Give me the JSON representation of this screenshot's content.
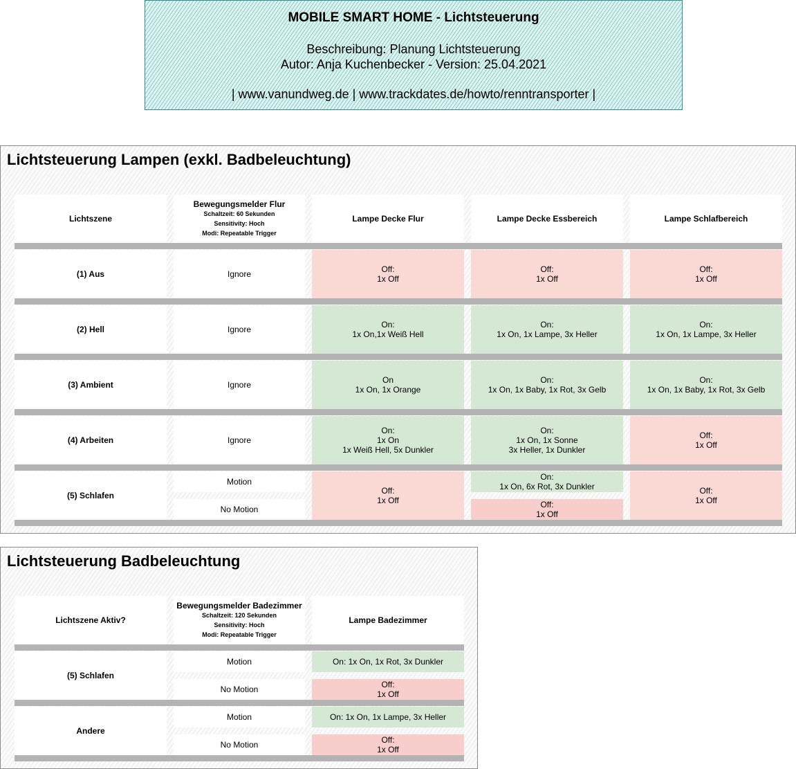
{
  "header": {
    "title": "MOBILE SMART HOME - Lichtsteuerung",
    "description": "Beschreibung: Planung Lichtsteuerung",
    "author": "Autor: Anja Kuchenbecker - Version: 25.04.2021",
    "links": "| www.vanundweg.de | www.trackdates.de/howto/renntransporter |"
  },
  "panel1": {
    "title": "Lichtsteuerung Lampen (exkl. Badbeleuchtung)",
    "col_scene": "Lichtszene",
    "col_motion": {
      "title": "Bewegungsmelder Flur",
      "switch_time": "Schaltzeit: 60 Sekunden",
      "sensitivity": "Sensitivity: Hoch",
      "mode": "Modi: Repeatable Trigger"
    },
    "col_lamp1": "Lampe Decke Flur",
    "col_lamp2": "Lampe Decke Essbereich",
    "col_lamp3": "Lampe Schlafbereich",
    "rows": {
      "aus": {
        "scene": "(1) Aus",
        "motion": "Ignore",
        "lamp1": [
          "Off:",
          "1x Off"
        ],
        "lamp2": [
          "Off:",
          "1x Off"
        ],
        "lamp3": [
          "Off:",
          "1x Off"
        ]
      },
      "hell": {
        "scene": "(2) Hell",
        "motion": "Ignore",
        "lamp1": [
          "On:",
          "1x On,1x Weiß Hell"
        ],
        "lamp2": [
          "On:",
          "1x On, 1x Lampe, 3x Heller"
        ],
        "lamp3": [
          "On:",
          "1x On, 1x Lampe, 3x Heller"
        ]
      },
      "ambient": {
        "scene": "(3) Ambient",
        "motion": "Ignore",
        "lamp1": [
          "On",
          "1x On, 1x Orange"
        ],
        "lamp2": [
          "On:",
          "1x On, 1x Baby, 1x Rot, 3x Gelb"
        ],
        "lamp3": [
          "On:",
          "1x On, 1x Baby, 1x Rot, 3x Gelb"
        ]
      },
      "arbeiten": {
        "scene": "(4) Arbeiten",
        "motion": "Ignore",
        "lamp1": [
          "On:",
          "1x On",
          "1x Weiß Hell, 5x Dunkler"
        ],
        "lamp2": [
          "On:",
          "1x On, 1x Sonne",
          "3x Heller, 1x Dunkler"
        ],
        "lamp3": [
          "Off:",
          "1x Off"
        ]
      },
      "schlafen": {
        "scene": "(5) Schlafen",
        "motion_on": "Motion",
        "motion_off": "No Motion",
        "lamp1": [
          "Off:",
          "1x Off"
        ],
        "lamp2_motion": [
          "On:",
          "1x On, 6x Rot, 3x Dunkler"
        ],
        "lamp2_nomotion": [
          "Off:",
          "1x Off"
        ],
        "lamp3": [
          "Off:",
          "1x Off"
        ]
      }
    }
  },
  "panel2": {
    "title": "Lichtsteuerung Badbeleuchtung",
    "col_scene": "Lichtszene Aktiv?",
    "col_motion": {
      "title": "Bewegungsmelder Badezimmer",
      "switch_time": "Schaltzeit: 120 Sekunden",
      "sensitivity": "Sensitivity: Hoch",
      "mode": "Modi: Repeatable Trigger"
    },
    "col_lamp": "Lampe Badezimmer",
    "rows": {
      "schlafen": {
        "scene": "(5) Schlafen",
        "motion_on": "Motion",
        "motion_off": "No Motion",
        "lamp_motion": "On: 1x On, 1x Rot, 3x Dunkler",
        "lamp_nomotion": [
          "Off:",
          "1x Off"
        ]
      },
      "andere": {
        "scene": "Andere",
        "motion_on": "Motion",
        "motion_off": "No Motion",
        "lamp_motion": "On: 1x On, 1x Lampe, 3x Heller",
        "lamp_nomotion": [
          "Off:",
          "1x Off"
        ]
      }
    }
  }
}
